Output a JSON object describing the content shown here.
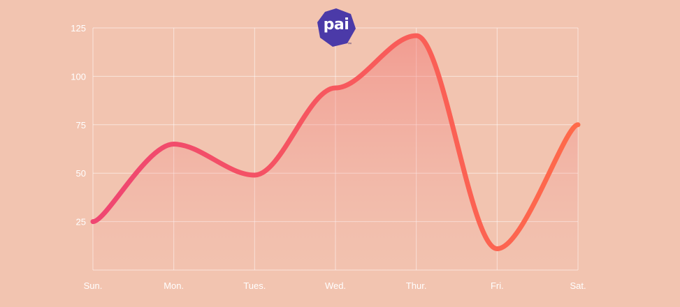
{
  "logo": {
    "text": "pai",
    "trademark": "™",
    "color": "#4b3aa8"
  },
  "chart_data": {
    "type": "area",
    "categories": [
      "Sun.",
      "Mon.",
      "Tues.",
      "Wed.",
      "Thur.",
      "Fri.",
      "Sat."
    ],
    "series": [
      {
        "values": [
          25,
          65,
          49,
          94,
          121,
          11,
          75
        ]
      }
    ],
    "y_ticks": [
      25,
      50,
      75,
      100,
      125
    ],
    "ylim": [
      0,
      125
    ],
    "grid": true,
    "line_gradient": [
      "#ef4672",
      "#ff6a4a"
    ],
    "background": "#f2c4b0"
  }
}
